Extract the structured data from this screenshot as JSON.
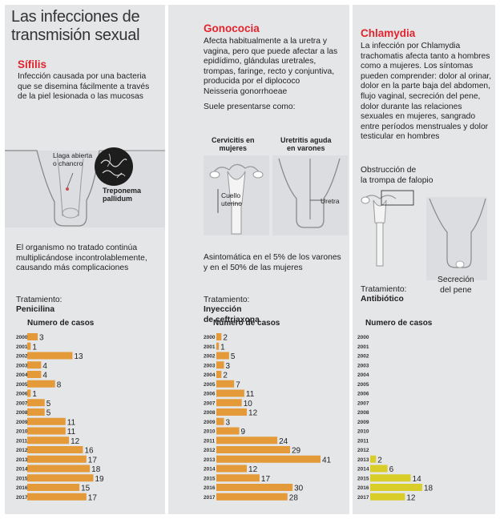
{
  "header": {
    "title": "Las infecciones de\ntransmisión sexual"
  },
  "syphilis": {
    "title": "Sífilis",
    "intro": "Infección causada por una bacteria\nque se disemina fácilmente a través\nde la piel lesionada o las mucosas",
    "label_chancre": "Llaga abierta\no chancro",
    "label_bacteria": "Treponema\npallidum",
    "progression": "El organismo no tratado continúa\nmultiplicándose incontrolablemente,\ncausando más complicaciones",
    "treatment_label": "Tratamiento:",
    "treatment_value": "Penicilina",
    "cases_title": "Numero de casos"
  },
  "gonorrhea": {
    "title": "Gonococia",
    "intro": "Afecta habitualmente a la uretra y\nvagina, pero que puede afectar a las\nepidídimo, glándulas uretrales,\ntrompas, faringe, recto y conjuntiva,\nproducida por el diplococo\nNeisseria gonorrhoeae",
    "presentation": "Suele presentarse como:",
    "label_cervicitis": "Cervicitis en\nmujeres",
    "label_cervix": "Cuello\nuterino",
    "label_urethritis": "Uretritis aguda\nen varones",
    "label_urethra": "Uretra",
    "asymptomatic": "Asintomática en el 5% de los varones\ny en el 50% de las mujeres",
    "treatment_label": "Tratamiento:",
    "treatment_value": "Inyección\nde ceftriaxona",
    "cases_title": "Numero de casos"
  },
  "chlamydia": {
    "title": "Chlamydia",
    "intro": "La infección por Chlamydia\ntrachomatis afecta tanto a hombres\ncomo a mujeres. Los síntomas\npueden comprender: dolor al orinar,\ndolor en la parte baja del abdomen,\nflujo vaginal, secreción del pene,\ndolor durante las relaciones\nsexuales en mujeres, sangrado\nentre períodos menstruales  y dolor\ntesticular en hombres",
    "label_obstruction": "Obstrucción de\nla trompa de falopio",
    "label_secretion": "Secreción\ndel pene",
    "treatment_label": "Tratamiento:",
    "treatment_value": "Antibiótico",
    "cases_title": "Numero de casos"
  },
  "colors": {
    "orange": "#e49a38",
    "yellow": "#d9cd2a",
    "red_title": "#e0242d",
    "panel": "#e5e6e8"
  },
  "chart_data": [
    {
      "type": "bar",
      "title": "Numero de casos",
      "orientation": "horizontal",
      "categories": [
        "2000",
        "2001",
        "2002",
        "2003",
        "2004",
        "2005",
        "2006",
        "2007",
        "2008",
        "2009",
        "2010",
        "2011",
        "2012",
        "2013",
        "2014",
        "2015",
        "2016",
        "2017"
      ],
      "series": [
        {
          "name": "Sífilis",
          "values": [
            3,
            1,
            13,
            4,
            4,
            8,
            1,
            5,
            5,
            11,
            11,
            12,
            16,
            17,
            18,
            19,
            15,
            17
          ]
        }
      ],
      "xlim": [
        0,
        41
      ],
      "grid": false
    },
    {
      "type": "bar",
      "title": "Numero de casos",
      "orientation": "horizontal",
      "categories": [
        "2000",
        "2001",
        "2002",
        "2003",
        "2004",
        "2005",
        "2006",
        "2007",
        "2008",
        "2009",
        "2010",
        "2011",
        "2012",
        "2013",
        "2014",
        "2015",
        "2016",
        "2017"
      ],
      "series": [
        {
          "name": "Gonococia",
          "values": [
            2,
            1,
            5,
            3,
            2,
            7,
            11,
            10,
            12,
            3,
            9,
            24,
            29,
            41,
            12,
            17,
            30,
            28
          ]
        }
      ],
      "xlim": [
        0,
        41
      ],
      "grid": false
    },
    {
      "type": "bar",
      "title": "Numero de casos",
      "orientation": "horizontal",
      "categories": [
        "2000",
        "2001",
        "2002",
        "2003",
        "2004",
        "2005",
        "2006",
        "2007",
        "2008",
        "2009",
        "2010",
        "2011",
        "2012",
        "2013",
        "2014",
        "2015",
        "2016",
        "2017"
      ],
      "series": [
        {
          "name": "Chlamydia",
          "values": [
            null,
            null,
            null,
            null,
            null,
            null,
            null,
            null,
            null,
            null,
            null,
            null,
            null,
            2,
            6,
            14,
            18,
            12
          ]
        }
      ],
      "xlim": [
        0,
        41
      ],
      "grid": false
    }
  ]
}
